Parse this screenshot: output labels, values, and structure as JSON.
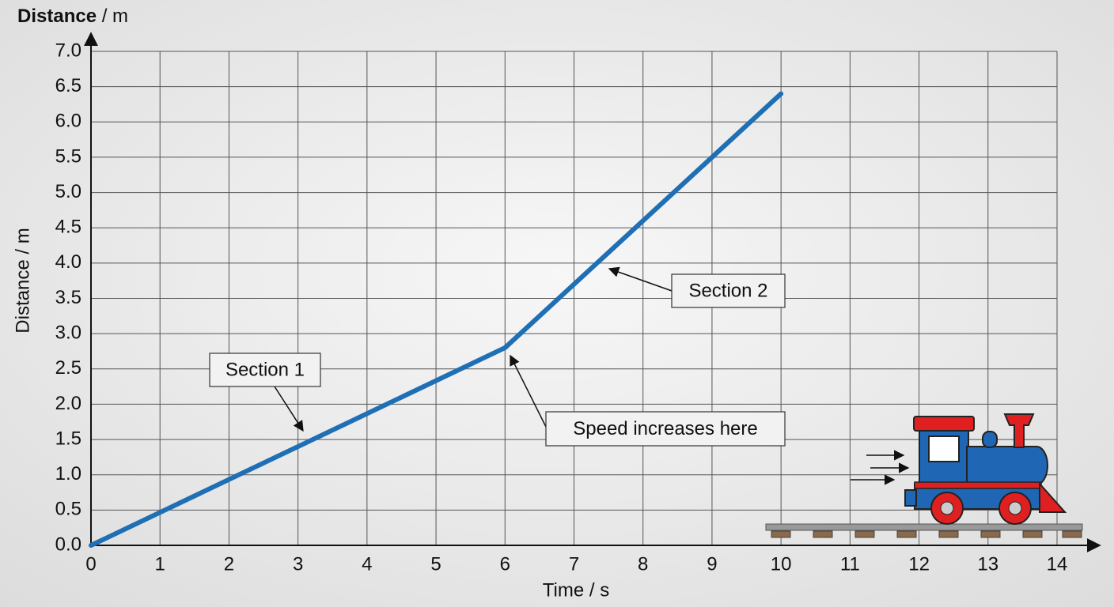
{
  "chart_data": {
    "type": "line",
    "title": {
      "strong": "Distance",
      "text": "/ m"
    },
    "xlabel": "Time / s",
    "ylabel": "Distance / m",
    "x": [
      0,
      6,
      10
    ],
    "series": [
      {
        "name": "Distance",
        "color": "#1f6fb5",
        "values": [
          0,
          2.8,
          6.4
        ]
      }
    ],
    "xlim": [
      0,
      14
    ],
    "xticks": [
      0,
      1,
      2,
      3,
      4,
      5,
      6,
      7,
      8,
      9,
      10,
      11,
      12,
      13,
      14
    ],
    "ylim": [
      0,
      7
    ],
    "yticks": [
      {
        "value": 0,
        "label": "0.0"
      },
      0.5,
      {
        "value": 1,
        "label": "1.0"
      },
      1.5,
      {
        "value": 2,
        "label": "2.0"
      },
      2.5,
      {
        "value": 3,
        "label": "3.0"
      },
      3.5,
      {
        "value": 4,
        "label": "4.0"
      },
      4.5,
      {
        "value": 5,
        "label": "5.0"
      },
      5.5,
      {
        "value": 6,
        "label": "6.0"
      },
      6.5,
      {
        "value": 7,
        "label": "7.0"
      }
    ],
    "grid": true,
    "annotations": [
      "Section 1",
      "Section 2",
      "Speed increases here"
    ]
  }
}
